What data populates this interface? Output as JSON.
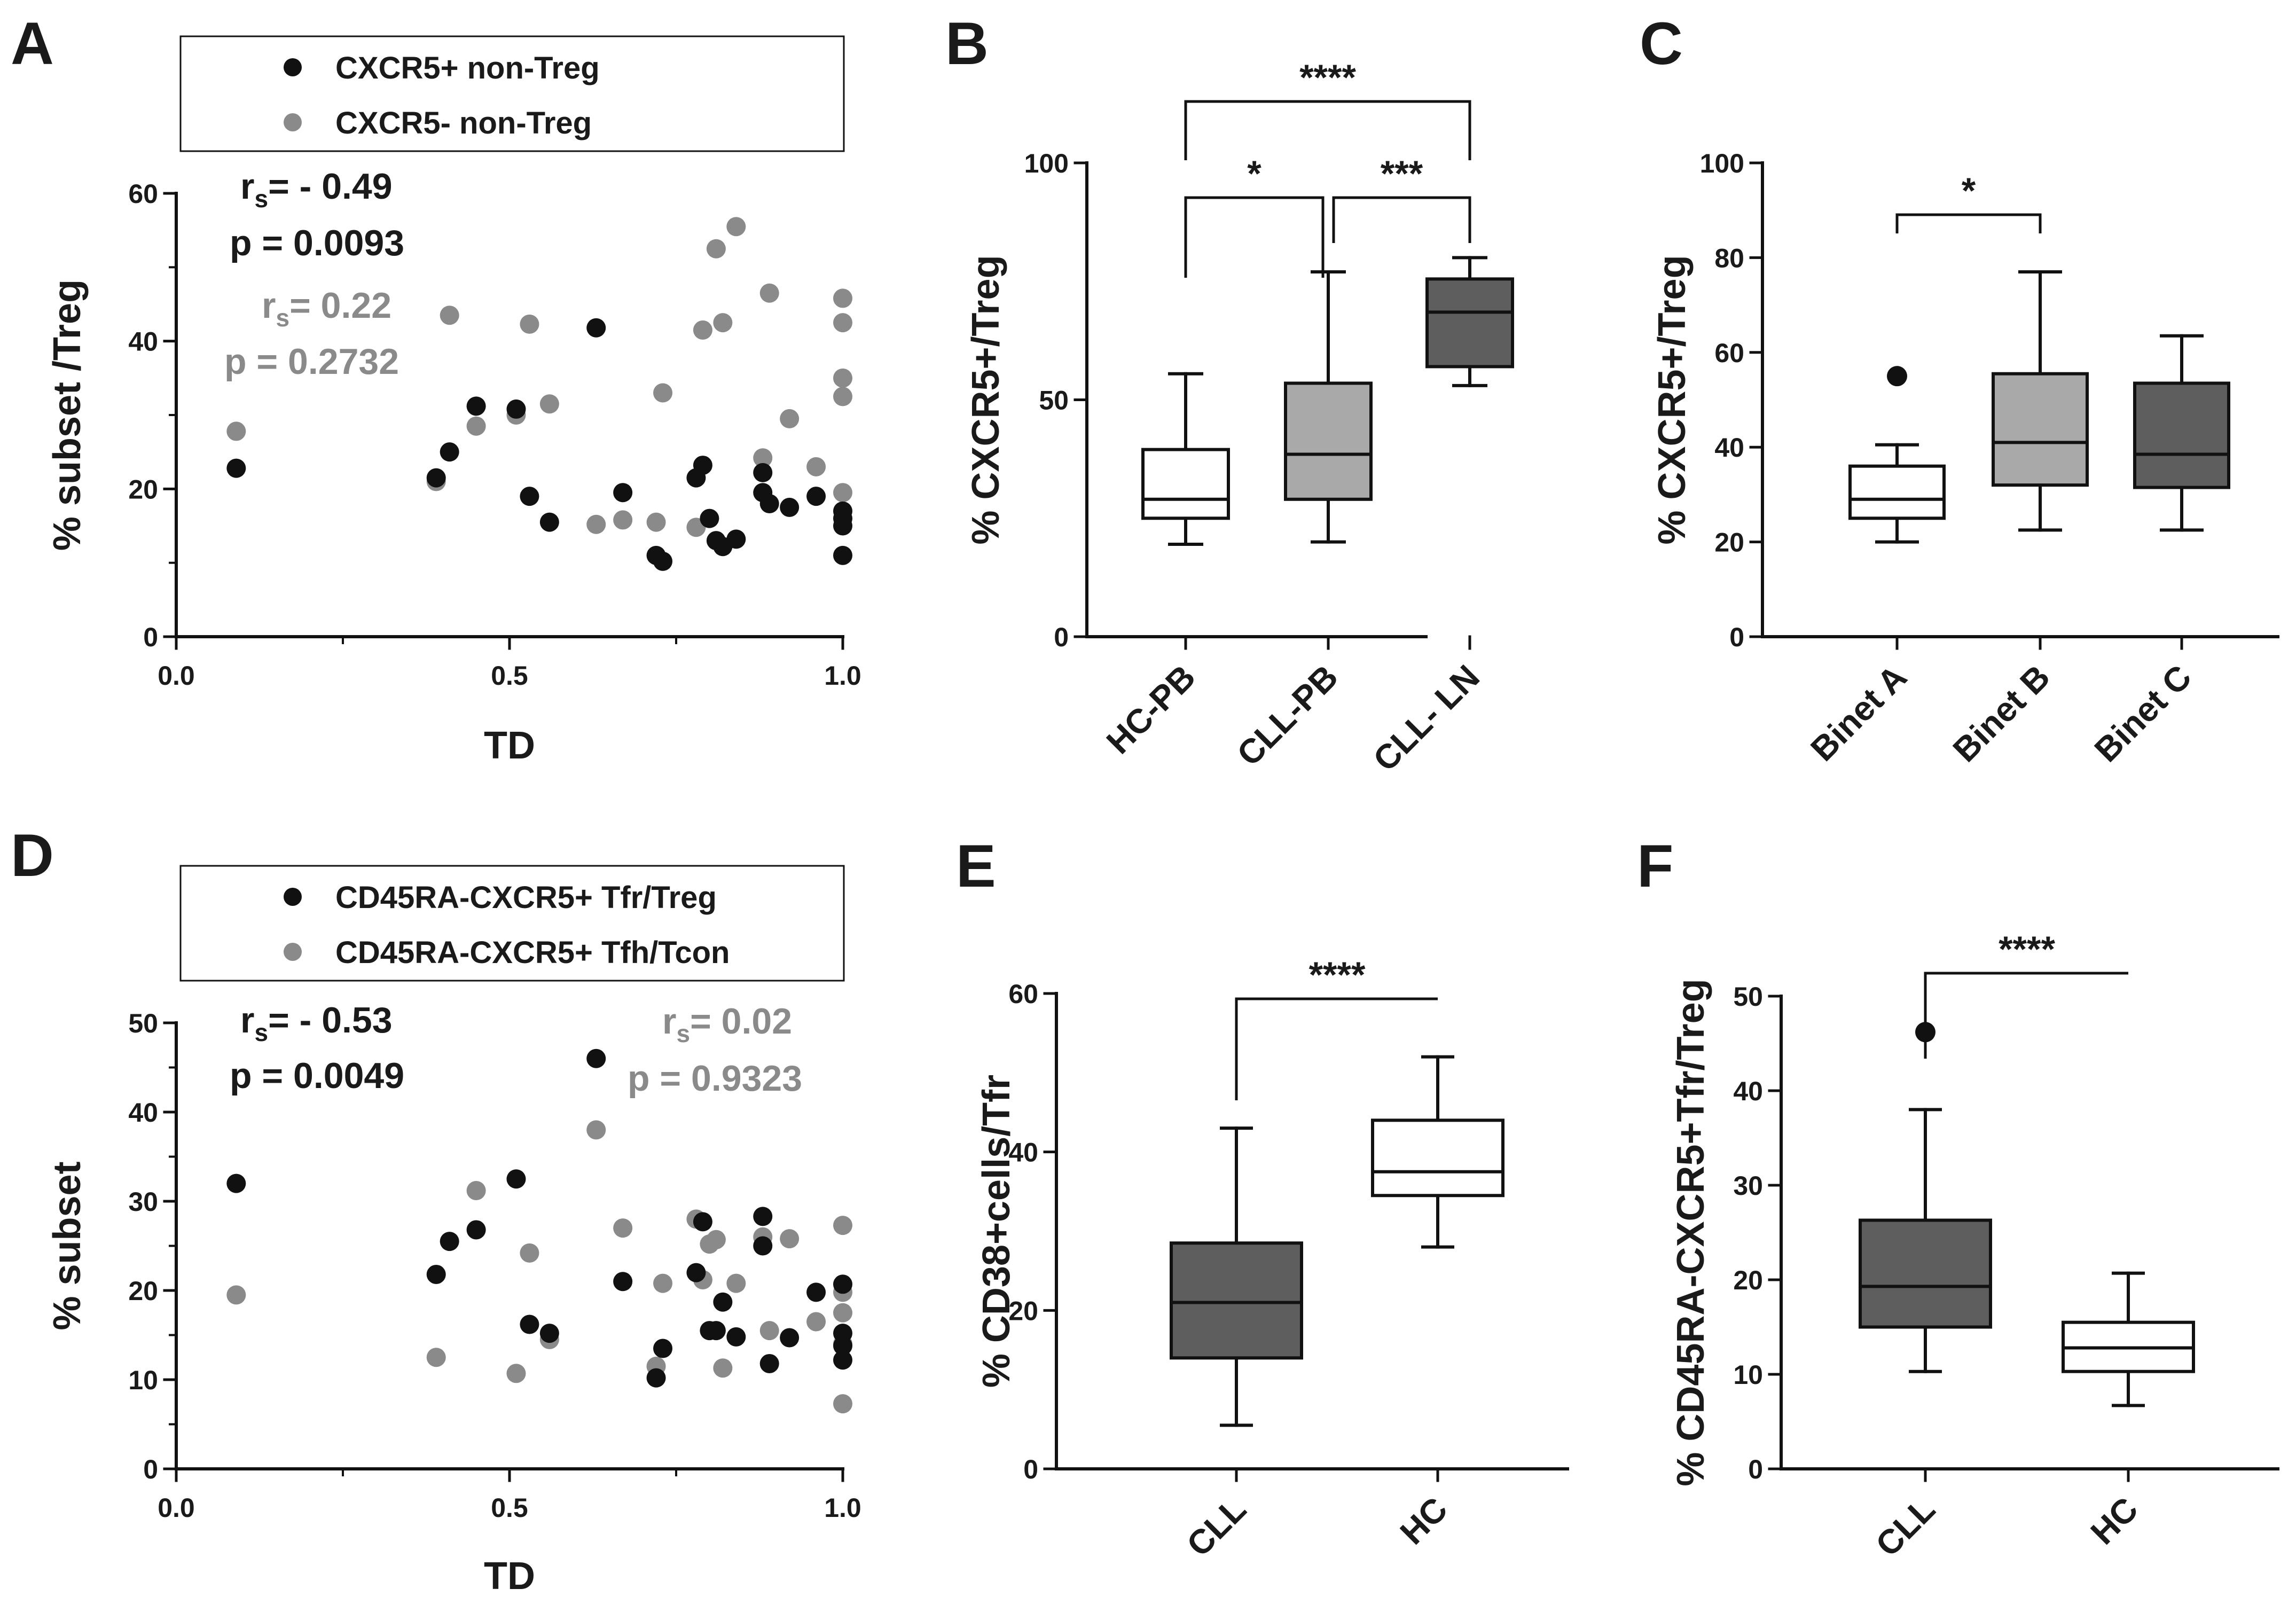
{
  "colors": {
    "black": "#111111",
    "gray": "#8a8a8a",
    "light_box": "#a9a9a9",
    "dark_box": "#5e5e5e",
    "white": "#ffffff"
  },
  "chart_data": [
    {
      "panel": "A",
      "type": "scatter",
      "xlabel": "TD",
      "ylabel": "% subset /Treg",
      "xlim": [
        0,
        1
      ],
      "ylim": [
        0,
        60
      ],
      "x_ticks": [
        "0.0",
        "0.5",
        "1.0"
      ],
      "y_ticks": [
        "0",
        "20",
        "40",
        "60"
      ],
      "legend": [
        "CXCR5+ non-Treg",
        "CXCR5- non-Treg"
      ],
      "legend_position": "top",
      "stats": [
        {
          "series": "CXCR5+ non-Treg",
          "rs_label": "r",
          "rs_sub": "s",
          "rs_value": "= - 0.49",
          "p": "p = 0.0093"
        },
        {
          "series": "CXCR5- non-Treg",
          "rs_label": "r",
          "rs_sub": "s",
          "rs_value": "= 0.22",
          "p": "p = 0.2732"
        }
      ],
      "series": [
        {
          "name": "CXCR5+ non-Treg",
          "color": "black",
          "points": [
            [
              0.09,
              22.8
            ],
            [
              0.39,
              21.5
            ],
            [
              0.41,
              25
            ],
            [
              0.45,
              31.2
            ],
            [
              0.51,
              30.8
            ],
            [
              0.53,
              19
            ],
            [
              0.56,
              15.5
            ],
            [
              0.63,
              41.8
            ],
            [
              0.67,
              19.5
            ],
            [
              0.72,
              11
            ],
            [
              0.73,
              10.2
            ],
            [
              0.78,
              21.5
            ],
            [
              0.79,
              23.2
            ],
            [
              0.8,
              16
            ],
            [
              0.81,
              13
            ],
            [
              0.82,
              12.2
            ],
            [
              0.84,
              13.2
            ],
            [
              0.88,
              22.2
            ],
            [
              0.88,
              19.5
            ],
            [
              0.89,
              18
            ],
            [
              0.92,
              17.5
            ],
            [
              0.96,
              19
            ],
            [
              1.0,
              17
            ],
            [
              1.0,
              16
            ],
            [
              1.0,
              15
            ],
            [
              1.0,
              11
            ]
          ]
        },
        {
          "name": "CXCR5- non-Treg",
          "color": "gray",
          "points": [
            [
              0.09,
              27.8
            ],
            [
              0.39,
              21
            ],
            [
              0.41,
              43.5
            ],
            [
              0.45,
              28.5
            ],
            [
              0.51,
              30
            ],
            [
              0.53,
              42.3
            ],
            [
              0.56,
              31.5
            ],
            [
              0.63,
              15.2
            ],
            [
              0.67,
              15.8
            ],
            [
              0.72,
              15.5
            ],
            [
              0.73,
              33
            ],
            [
              0.78,
              14.8
            ],
            [
              0.79,
              41.5
            ],
            [
              0.81,
              52.5
            ],
            [
              0.82,
              42.5
            ],
            [
              0.84,
              55.5
            ],
            [
              0.88,
              24.2
            ],
            [
              0.89,
              46.5
            ],
            [
              0.92,
              29.5
            ],
            [
              0.96,
              23
            ],
            [
              1.0,
              45.8
            ],
            [
              1.0,
              42.5
            ],
            [
              1.0,
              35
            ],
            [
              1.0,
              32.5
            ],
            [
              1.0,
              19.5
            ]
          ]
        }
      ]
    },
    {
      "panel": "B",
      "type": "box",
      "ylabel": "% CXCR5+/Treg",
      "ylim": [
        0,
        100
      ],
      "y_ticks": [
        "0",
        "50",
        "100"
      ],
      "categories": [
        "HC-PB",
        "CLL-PB",
        "CLL- LN"
      ],
      "boxes": [
        {
          "category": "HC-PB",
          "min": 19.5,
          "q1": 25,
          "median": 29,
          "q3": 39.5,
          "max": 55.5,
          "fill": "white"
        },
        {
          "category": "CLL-PB",
          "min": 20,
          "q1": 29,
          "median": 38.5,
          "q3": 53.5,
          "max": 77,
          "fill": "light_box"
        },
        {
          "category": "CLL- LN",
          "min": 53,
          "q1": 57,
          "median": 68.5,
          "q3": 75.5,
          "max": 80,
          "fill": "dark_box"
        }
      ],
      "significance": [
        {
          "from": 0,
          "to": 2,
          "label": "****"
        },
        {
          "from": 0,
          "to": 1,
          "label": "*"
        },
        {
          "from": 1,
          "to": 2,
          "label": "***"
        }
      ]
    },
    {
      "panel": "C",
      "type": "box",
      "ylabel": "% CXCR5+/Treg",
      "ylim": [
        0,
        100
      ],
      "y_ticks": [
        "0",
        "20",
        "40",
        "60",
        "80",
        "100"
      ],
      "categories": [
        "Binet A",
        "Binet B",
        "Binet C"
      ],
      "boxes": [
        {
          "category": "Binet A",
          "min": 20,
          "q1": 25,
          "median": 29,
          "q3": 36,
          "max": 40.5,
          "outliers": [
            55
          ],
          "fill": "white"
        },
        {
          "category": "Binet B",
          "min": 22.5,
          "q1": 32,
          "median": 41,
          "q3": 55.5,
          "max": 77,
          "fill": "light_box"
        },
        {
          "category": "Binet C",
          "min": 22.5,
          "q1": 31.5,
          "median": 38.5,
          "q3": 53.5,
          "max": 63.5,
          "fill": "dark_box"
        }
      ],
      "significance": [
        {
          "from": 0,
          "to": 1,
          "label": "*"
        }
      ]
    },
    {
      "panel": "D",
      "type": "scatter",
      "xlabel": "TD",
      "ylabel": "% subset",
      "xlim": [
        0,
        1
      ],
      "ylim": [
        0,
        50
      ],
      "x_ticks": [
        "0.0",
        "0.5",
        "1.0"
      ],
      "y_ticks": [
        "0",
        "10",
        "20",
        "30",
        "40",
        "50"
      ],
      "legend": [
        "CD45RA-CXCR5+ Tfr/Treg",
        "CD45RA-CXCR5+ Tfh/Tcon"
      ],
      "legend_position": "top",
      "stats": [
        {
          "series": "CD45RA-CXCR5+ Tfr/Treg",
          "rs_label": "r",
          "rs_sub": "s",
          "rs_value": "= - 0.53",
          "p": "p = 0.0049"
        },
        {
          "series": "CD45RA-CXCR5+ Tfh/Tcon",
          "rs_label": "r",
          "rs_sub": "s",
          "rs_value": "= 0.02",
          "p": "p = 0.9323"
        }
      ],
      "series": [
        {
          "name": "CD45RA-CXCR5+ Tfr/Treg",
          "color": "black",
          "points": [
            [
              0.09,
              32
            ],
            [
              0.39,
              21.8
            ],
            [
              0.41,
              25.5
            ],
            [
              0.45,
              26.8
            ],
            [
              0.51,
              32.5
            ],
            [
              0.53,
              16.2
            ],
            [
              0.56,
              15.2
            ],
            [
              0.63,
              46
            ],
            [
              0.67,
              21
            ],
            [
              0.72,
              10.2
            ],
            [
              0.73,
              13.5
            ],
            [
              0.78,
              22
            ],
            [
              0.79,
              27.7
            ],
            [
              0.8,
              15.5
            ],
            [
              0.81,
              15.5
            ],
            [
              0.82,
              18.7
            ],
            [
              0.84,
              14.8
            ],
            [
              0.88,
              28.3
            ],
            [
              0.88,
              25
            ],
            [
              0.89,
              11.8
            ],
            [
              0.92,
              14.7
            ],
            [
              0.96,
              19.8
            ],
            [
              1.0,
              20.7
            ],
            [
              1.0,
              15.2
            ],
            [
              1.0,
              13.8
            ],
            [
              1.0,
              12.2
            ]
          ]
        },
        {
          "name": "CD45RA-CXCR5+ Tfh/Tcon",
          "color": "gray",
          "points": [
            [
              0.09,
              19.5
            ],
            [
              0.39,
              12.5
            ],
            [
              0.45,
              31.2
            ],
            [
              0.51,
              10.7
            ],
            [
              0.53,
              24.2
            ],
            [
              0.56,
              14.5
            ],
            [
              0.63,
              38
            ],
            [
              0.67,
              27
            ],
            [
              0.72,
              11.5
            ],
            [
              0.73,
              20.8
            ],
            [
              0.78,
              28
            ],
            [
              0.79,
              21.2
            ],
            [
              0.8,
              25.2
            ],
            [
              0.81,
              25.7
            ],
            [
              0.82,
              11.3
            ],
            [
              0.84,
              20.8
            ],
            [
              0.88,
              26
            ],
            [
              0.89,
              15.5
            ],
            [
              0.92,
              25.8
            ],
            [
              0.96,
              16.5
            ],
            [
              1.0,
              27.3
            ],
            [
              1.0,
              19.8
            ],
            [
              1.0,
              17.5
            ],
            [
              1.0,
              14
            ],
            [
              1.0,
              7.3
            ]
          ]
        }
      ]
    },
    {
      "panel": "E",
      "type": "box",
      "ylabel": "% CD38+cells/Tfr",
      "ylim": [
        0,
        60
      ],
      "y_ticks": [
        "0",
        "20",
        "40",
        "60"
      ],
      "categories": [
        "CLL",
        "HC"
      ],
      "boxes": [
        {
          "category": "CLL",
          "min": 5.5,
          "q1": 14,
          "median": 21,
          "q3": 28.5,
          "max": 43,
          "fill": "dark_box"
        },
        {
          "category": "HC",
          "min": 28,
          "q1": 34.5,
          "median": 37.5,
          "q3": 44,
          "max": 52,
          "fill": "white"
        }
      ],
      "significance": [
        {
          "from": 0,
          "to": 1,
          "label": "****"
        }
      ]
    },
    {
      "panel": "F",
      "type": "box",
      "ylabel": "% CD45RA-CXCR5+Tfr/Treg",
      "ylim": [
        0,
        50
      ],
      "y_ticks": [
        "0",
        "10",
        "20",
        "30",
        "40",
        "50"
      ],
      "categories": [
        "CLL",
        "HC"
      ],
      "boxes": [
        {
          "category": "CLL",
          "min": 10.3,
          "q1": 15,
          "median": 19.3,
          "q3": 26.3,
          "max": 38,
          "outliers": [
            46.2
          ],
          "fill": "dark_box"
        },
        {
          "category": "HC",
          "min": 6.7,
          "q1": 10.3,
          "median": 12.8,
          "q3": 15.5,
          "max": 20.7,
          "fill": "white"
        }
      ],
      "significance": [
        {
          "from": 0,
          "to": 1,
          "label": "****"
        }
      ]
    }
  ]
}
